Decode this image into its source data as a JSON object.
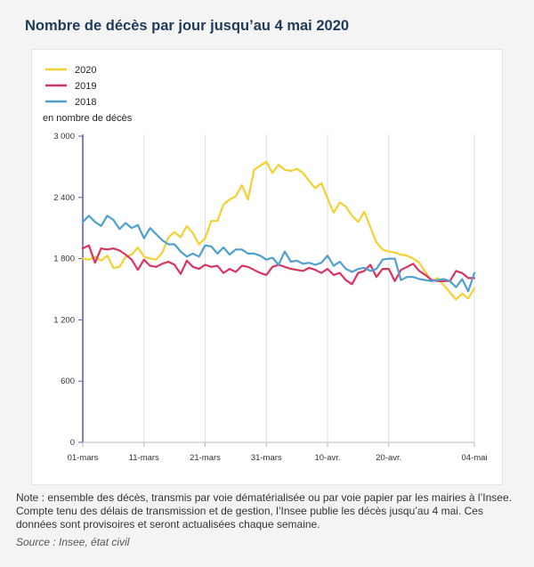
{
  "title": "Nombre de décès par jour jusqu’au 4 mai 2020",
  "note": "Note : ensemble des décès, transmis par voie dématérialisée ou par voie papier par les mairies à l’Insee. Compte tenu des délais de transmission et de gestion, l’Insee publie les décès jusqu’au 4 mai. Ces données sont provisoires et seront actualisées chaque semaine.",
  "source": "Source : Insee, état civil",
  "chart_data": {
    "type": "line",
    "ylabel": "en nombre de décès",
    "ylim": [
      0,
      3000
    ],
    "yticks": [
      0,
      600,
      1200,
      1800,
      2400,
      3000
    ],
    "ytick_labels": [
      "0",
      "600",
      "1 200",
      "1 800",
      "2 400",
      "3 000"
    ],
    "xtick_positions": [
      0,
      10,
      20,
      30,
      40,
      50,
      64
    ],
    "xtick_labels": [
      "01-mars",
      "11-mars",
      "21-mars",
      "31-mars",
      "10-avr.",
      "20-avr.",
      "04-mai"
    ],
    "legend_position": "top-left",
    "grid": "vertical",
    "series": [
      {
        "name": "2020",
        "color": "#f5d033",
        "values": [
          1800,
          1790,
          1820,
          1780,
          1830,
          1710,
          1720,
          1820,
          1840,
          1910,
          1820,
          1800,
          1790,
          1860,
          2010,
          2060,
          2010,
          2120,
          2050,
          1940,
          2000,
          2170,
          2170,
          2330,
          2380,
          2410,
          2520,
          2380,
          2670,
          2710,
          2750,
          2640,
          2720,
          2670,
          2660,
          2680,
          2640,
          2560,
          2490,
          2540,
          2390,
          2250,
          2350,
          2310,
          2220,
          2160,
          2260,
          2110,
          1960,
          1890,
          1870,
          1860,
          1840,
          1830,
          1800,
          1760,
          1670,
          1580,
          1610,
          1540,
          1470,
          1400,
          1460,
          1410,
          1510
        ]
      },
      {
        "name": "2019",
        "color": "#d9345f",
        "values": [
          1900,
          1930,
          1760,
          1900,
          1890,
          1900,
          1880,
          1840,
          1790,
          1690,
          1790,
          1730,
          1720,
          1750,
          1770,
          1740,
          1650,
          1780,
          1720,
          1700,
          1740,
          1720,
          1730,
          1660,
          1700,
          1670,
          1730,
          1720,
          1690,
          1660,
          1640,
          1720,
          1740,
          1720,
          1700,
          1690,
          1680,
          1710,
          1690,
          1660,
          1700,
          1640,
          1660,
          1590,
          1550,
          1660,
          1680,
          1740,
          1620,
          1700,
          1700,
          1580,
          1690,
          1720,
          1750,
          1680,
          1640,
          1590,
          1580,
          1580,
          1580,
          1680,
          1660,
          1610,
          1610
        ]
      },
      {
        "name": "2018",
        "color": "#4f9fcf",
        "values": [
          2160,
          2220,
          2160,
          2120,
          2220,
          2180,
          2090,
          2150,
          2100,
          2130,
          2000,
          2100,
          2040,
          1980,
          1940,
          1940,
          1870,
          1820,
          1850,
          1820,
          1930,
          1920,
          1850,
          1910,
          1840,
          1890,
          1890,
          1850,
          1850,
          1830,
          1790,
          1810,
          1740,
          1870,
          1770,
          1780,
          1750,
          1760,
          1740,
          1760,
          1830,
          1730,
          1770,
          1700,
          1670,
          1700,
          1710,
          1680,
          1700,
          1790,
          1800,
          1800,
          1590,
          1620,
          1620,
          1600,
          1590,
          1580,
          1590,
          1600,
          1580,
          1520,
          1600,
          1480,
          1660
        ]
      }
    ]
  }
}
